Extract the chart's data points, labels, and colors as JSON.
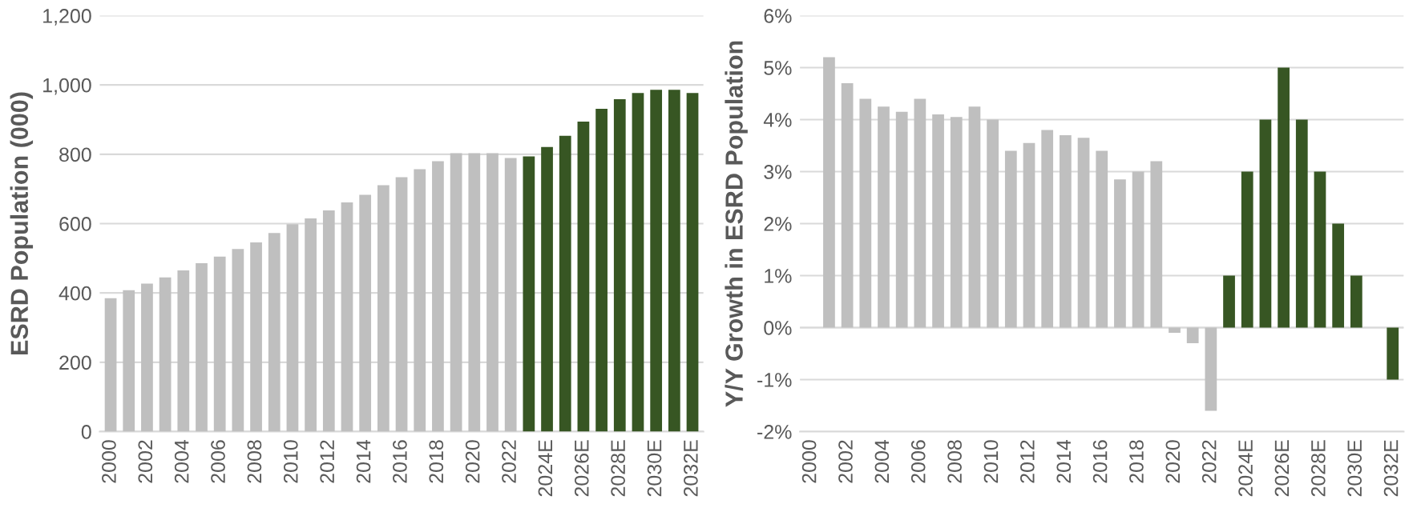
{
  "chart_data": [
    {
      "type": "bar",
      "ylabel": "ESRD Population (000)",
      "categories": [
        "2000",
        null,
        "2002",
        null,
        "2004",
        null,
        "2006",
        null,
        "2008",
        null,
        "2010",
        null,
        "2012",
        null,
        "2014",
        null,
        "2016",
        null,
        "2018",
        null,
        "2020",
        null,
        "2022",
        null,
        "2024E",
        null,
        "2026E",
        null,
        "2028E",
        null,
        "2030E",
        null,
        "2032E"
      ],
      "values": [
        385,
        408,
        427,
        445,
        465,
        486,
        505,
        527,
        546,
        573,
        598,
        615,
        638,
        661,
        683,
        711,
        734,
        757,
        780,
        803,
        803,
        803,
        789,
        794,
        821,
        853,
        894,
        931,
        959,
        977,
        986,
        986,
        977
      ],
      "colors": [
        "#bfbfbf",
        "#bfbfbf",
        "#bfbfbf",
        "#bfbfbf",
        "#bfbfbf",
        "#bfbfbf",
        "#bfbfbf",
        "#bfbfbf",
        "#bfbfbf",
        "#bfbfbf",
        "#bfbfbf",
        "#bfbfbf",
        "#bfbfbf",
        "#bfbfbf",
        "#bfbfbf",
        "#bfbfbf",
        "#bfbfbf",
        "#bfbfbf",
        "#bfbfbf",
        "#bfbfbf",
        "#bfbfbf",
        "#bfbfbf",
        "#bfbfbf",
        "#375623",
        "#375623",
        "#375623",
        "#375623",
        "#375623",
        "#375623",
        "#375623",
        "#375623",
        "#375623",
        "#375623"
      ],
      "ylim": [
        0,
        1200
      ],
      "yticks": [
        0,
        200,
        400,
        600,
        800,
        {
          "value": 1000,
          "label": "1,000"
        },
        {
          "value": 1200,
          "label": "1,200"
        }
      ],
      "grid": "y"
    },
    {
      "type": "bar",
      "ylabel": "Y/Y Growth in ESRD Population",
      "categories": [
        "2000",
        null,
        "2002",
        null,
        "2004",
        null,
        "2006",
        null,
        "2008",
        null,
        "2010",
        null,
        "2012",
        null,
        "2014",
        null,
        "2016",
        null,
        "2018",
        null,
        "2020",
        null,
        "2022",
        null,
        "2024E",
        null,
        "2026E",
        null,
        "2028E",
        null,
        "2030E",
        null,
        "2032E"
      ],
      "values": [
        null,
        5.2,
        4.7,
        4.4,
        4.25,
        4.15,
        4.4,
        4.1,
        4.05,
        4.25,
        4.0,
        3.4,
        3.55,
        3.8,
        3.7,
        3.65,
        3.4,
        2.85,
        3.0,
        3.2,
        -0.1,
        -0.3,
        -1.6,
        1,
        3,
        4,
        5,
        4,
        3,
        2,
        1,
        null,
        -1
      ],
      "colors": [
        "#bfbfbf",
        "#bfbfbf",
        "#bfbfbf",
        "#bfbfbf",
        "#bfbfbf",
        "#bfbfbf",
        "#bfbfbf",
        "#bfbfbf",
        "#bfbfbf",
        "#bfbfbf",
        "#bfbfbf",
        "#bfbfbf",
        "#bfbfbf",
        "#bfbfbf",
        "#bfbfbf",
        "#bfbfbf",
        "#bfbfbf",
        "#bfbfbf",
        "#bfbfbf",
        "#bfbfbf",
        "#bfbfbf",
        "#bfbfbf",
        "#bfbfbf",
        "#375623",
        "#375623",
        "#375623",
        "#375623",
        "#375623",
        "#375623",
        "#375623",
        "#375623",
        "#375623",
        "#375623"
      ],
      "ylim": [
        -2,
        6
      ],
      "yticks": [
        {
          "value": -2,
          "label": "-2%"
        },
        {
          "value": -1,
          "label": "-1%"
        },
        {
          "value": 0,
          "label": "0%"
        },
        {
          "value": 1,
          "label": "1%"
        },
        {
          "value": 2,
          "label": "2%"
        },
        {
          "value": 3,
          "label": "3%"
        },
        {
          "value": 4,
          "label": "4%"
        },
        {
          "value": 5,
          "label": "5%"
        },
        {
          "value": 6,
          "label": "6%"
        }
      ],
      "grid": "y"
    }
  ]
}
